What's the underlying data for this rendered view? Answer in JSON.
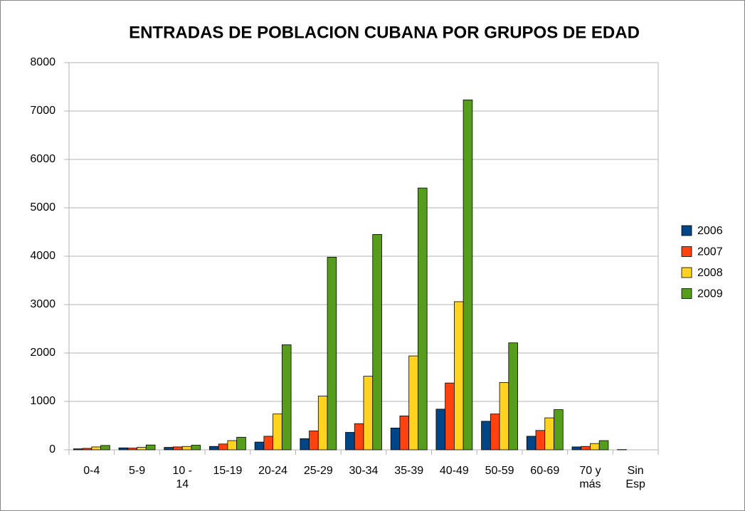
{
  "chart_data": {
    "type": "bar",
    "title": "ENTRADAS DE POBLACION CUBANA POR GRUPOS DE EDAD",
    "categories": [
      "0-4",
      "5-9",
      "10 - 14",
      "15-19",
      "20-24",
      "25-29",
      "30-34",
      "35-39",
      "40-49",
      "50-59",
      "60-69",
      "70 y más",
      "Sin Esp"
    ],
    "series": [
      {
        "name": "2006",
        "color": "#004586",
        "values": [
          20,
          40,
          50,
          70,
          160,
          230,
          360,
          450,
          840,
          590,
          280,
          60,
          5
        ]
      },
      {
        "name": "2007",
        "color": "#ff420e",
        "values": [
          30,
          35,
          60,
          120,
          280,
          390,
          540,
          700,
          1380,
          740,
          400,
          70,
          0
        ]
      },
      {
        "name": "2008",
        "color": "#ffd320",
        "values": [
          60,
          50,
          70,
          190,
          740,
          1110,
          1520,
          1940,
          3060,
          1390,
          660,
          130,
          0
        ]
      },
      {
        "name": "2009",
        "color": "#579d1c",
        "values": [
          90,
          100,
          95,
          260,
          2170,
          3980,
          4450,
          5410,
          7230,
          2210,
          830,
          190,
          0
        ]
      }
    ],
    "ylim": [
      0,
      8000
    ],
    "yticks": [
      0,
      1000,
      2000,
      3000,
      4000,
      5000,
      6000,
      7000,
      8000
    ],
    "grid": true,
    "legend": "right"
  }
}
